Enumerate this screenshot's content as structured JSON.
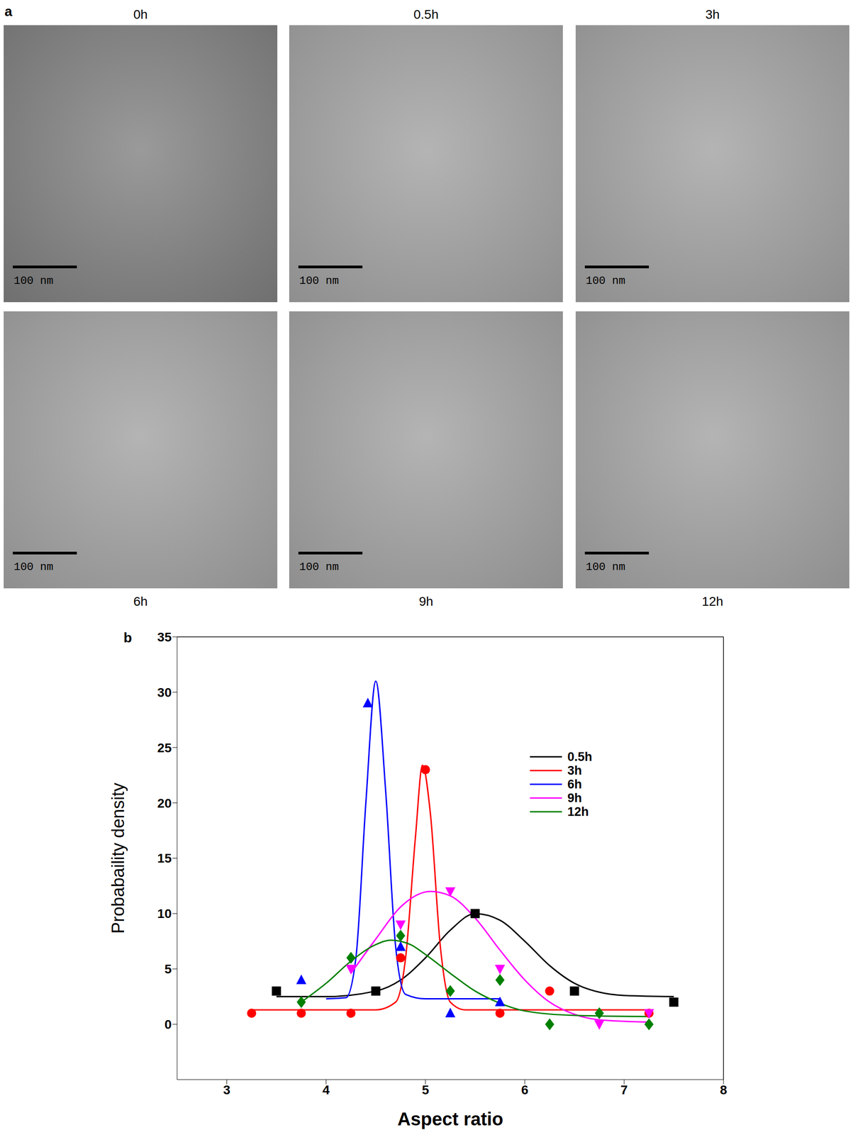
{
  "panel_a": {
    "label": "a",
    "images": [
      {
        "time": "0h",
        "scale_bar": "100 nm"
      },
      {
        "time": "0.5h",
        "scale_bar": "100 nm"
      },
      {
        "time": "3h",
        "scale_bar": "100 nm"
      },
      {
        "time": "6h",
        "scale_bar": "100 nm"
      },
      {
        "time": "9h",
        "scale_bar": "100 nm"
      },
      {
        "time": "12h",
        "scale_bar": "100 nm"
      }
    ]
  },
  "chart_data": {
    "type": "scatter",
    "title": "b",
    "x_label": "Aspect ratio",
    "y_label": "Probabaility density",
    "xlim": [
      2.5,
      8
    ],
    "xticks": [
      3,
      4,
      5,
      6,
      7,
      8
    ],
    "ylim": [
      -5,
      35
    ],
    "yticks": [
      0,
      5,
      10,
      15,
      20,
      25,
      30,
      35
    ],
    "legend": "right",
    "series": [
      {
        "name": "0.5h",
        "color": "#000000",
        "marker": "square",
        "line_style": "solid",
        "x": [
          3.5,
          4.5,
          5.5,
          6.5,
          7.5
        ],
        "values": [
          3,
          3,
          10,
          3,
          2
        ],
        "fit": {
          "x": [
            3.5,
            4.0,
            4.5,
            4.75,
            5.0,
            5.25,
            5.5,
            5.75,
            6.0,
            6.25,
            6.5,
            6.75,
            7.0,
            7.5
          ],
          "values": [
            2.5,
            2.5,
            3.0,
            4.0,
            6.0,
            8.5,
            10,
            9.4,
            7.5,
            5.3,
            3.7,
            2.9,
            2.6,
            2.5
          ]
        }
      },
      {
        "name": "3h",
        "color": "#ff0000",
        "marker": "circle",
        "line_style": "solid",
        "x": [
          3.25,
          3.75,
          4.25,
          4.75,
          5.0,
          5.75,
          6.25,
          7.25
        ],
        "values": [
          1,
          1,
          1,
          6,
          23,
          1,
          3,
          1
        ],
        "fit": {
          "x": [
            3.25,
            4.5,
            4.7,
            4.8,
            4.9,
            4.97,
            5.05,
            5.15,
            5.25,
            5.4,
            7.25
          ],
          "values": [
            1.3,
            1.3,
            2,
            6,
            17,
            23.4,
            19,
            7,
            2,
            1.3,
            1.3
          ]
        }
      },
      {
        "name": "6h",
        "color": "#0000ff",
        "marker": "triangle",
        "line_style": "solid",
        "x": [
          3.75,
          4.42,
          4.75,
          5.25,
          5.75
        ],
        "values": [
          4,
          29,
          7,
          1,
          2
        ],
        "fit": {
          "x": [
            4.0,
            4.2,
            4.3,
            4.4,
            4.5,
            4.6,
            4.7,
            4.8,
            5.0,
            5.75
          ],
          "values": [
            2.3,
            2.4,
            6,
            20,
            31,
            21,
            7,
            2.7,
            2.3,
            2.3
          ]
        }
      },
      {
        "name": "9h",
        "color": "#ff00ff",
        "marker": "triangle-down",
        "line_style": "solid",
        "x": [
          4.25,
          4.75,
          5.25,
          5.75,
          6.75,
          7.25
        ],
        "values": [
          5,
          9,
          12,
          5,
          0,
          1
        ],
        "fit": {
          "x": [
            4.25,
            4.5,
            4.75,
            5.05,
            5.25,
            5.5,
            5.75,
            6.0,
            6.25,
            6.5,
            6.75,
            7.25
          ],
          "values": [
            4.6,
            7.7,
            10.6,
            12,
            11.6,
            9.6,
            6.7,
            4.0,
            2.0,
            0.9,
            0.4,
            0.2
          ]
        }
      },
      {
        "name": "12h",
        "color": "#008000",
        "marker": "diamond",
        "line_style": "solid",
        "x": [
          3.75,
          4.25,
          4.75,
          5.25,
          5.75,
          6.25,
          6.75,
          7.25
        ],
        "values": [
          2,
          6,
          8,
          3,
          4,
          0,
          1,
          0
        ],
        "fit": {
          "x": [
            3.75,
            4.0,
            4.25,
            4.5,
            4.65,
            4.85,
            5.0,
            5.25,
            5.5,
            5.75,
            6.0,
            6.5,
            7.25
          ],
          "values": [
            2.0,
            3.7,
            5.7,
            7.2,
            7.6,
            7.2,
            6.3,
            4.6,
            3.0,
            1.9,
            1.2,
            0.8,
            0.7
          ]
        }
      }
    ]
  }
}
